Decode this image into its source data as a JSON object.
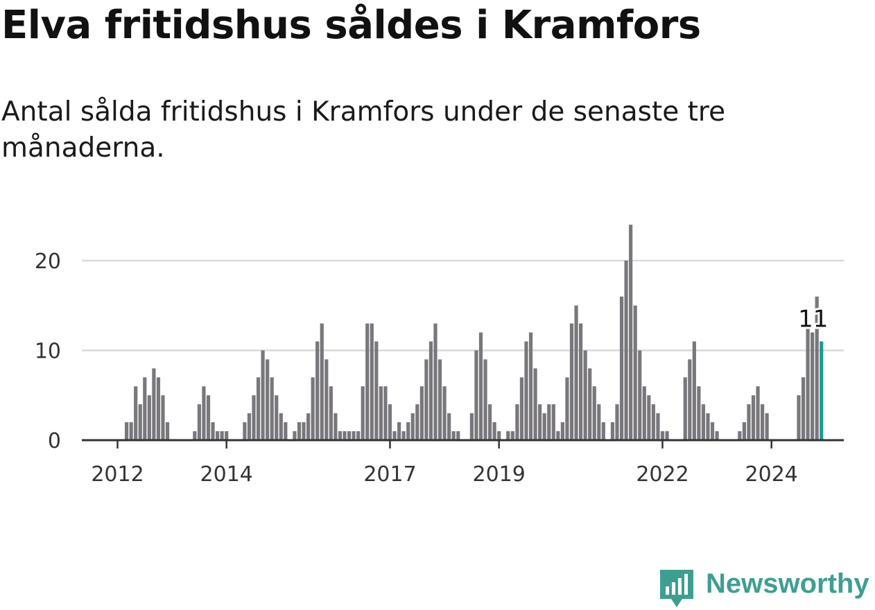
{
  "chart_data": {
    "type": "bar",
    "title": "Elva fritidshus såldes i Kramfors",
    "subtitle": "Antal sålda fritidshus i Kramfors under de senaste tre månaderna.",
    "x_start": "2011-01",
    "frequency": "monthly",
    "values": [
      0,
      0,
      0,
      0,
      0,
      0,
      0,
      0,
      0,
      0,
      0,
      0,
      0,
      0,
      2,
      2,
      6,
      4,
      7,
      5,
      8,
      7,
      5,
      2,
      0,
      0,
      0,
      0,
      0,
      1,
      4,
      6,
      5,
      2,
      1,
      1,
      1,
      0,
      0,
      0,
      2,
      3,
      5,
      7,
      10,
      9,
      7,
      5,
      3,
      2,
      0,
      1,
      2,
      2,
      3,
      7,
      11,
      13,
      9,
      6,
      3,
      1,
      1,
      1,
      1,
      1,
      6,
      13,
      13,
      11,
      6,
      6,
      4,
      1,
      2,
      1,
      2,
      3,
      4,
      6,
      9,
      11,
      13,
      9,
      6,
      3,
      1,
      1,
      0,
      0,
      3,
      10,
      12,
      9,
      4,
      2,
      1,
      0,
      1,
      1,
      4,
      7,
      11,
      12,
      8,
      4,
      3,
      4,
      4,
      1,
      2,
      7,
      13,
      15,
      13,
      10,
      8,
      6,
      4,
      2,
      0,
      2,
      4,
      16,
      20,
      24,
      15,
      10,
      6,
      5,
      4,
      3,
      1,
      1,
      0,
      0,
      0,
      7,
      9,
      11,
      6,
      4,
      3,
      2,
      1,
      0,
      0,
      0,
      0,
      1,
      2,
      4,
      5,
      6,
      4,
      3,
      0,
      0,
      0,
      0,
      0,
      0,
      5,
      7,
      13,
      12,
      16,
      11
    ],
    "ylim": [
      0,
      25
    ],
    "yticks": [
      0,
      10,
      20
    ],
    "ytick_labels": [
      "0",
      "10",
      "20"
    ],
    "xtick_labels": [
      "2012",
      "2014",
      "2017",
      "2019",
      "2022",
      "2024"
    ],
    "grid": true,
    "highlight_last": true,
    "last_label": "11",
    "colors": {
      "bar": "#79777c",
      "highlight": "#1f9a91",
      "grid": "#d9d9d9",
      "axis": "#333333"
    }
  },
  "brand": {
    "name": "Newsworthy",
    "color": "#3f9e92"
  }
}
